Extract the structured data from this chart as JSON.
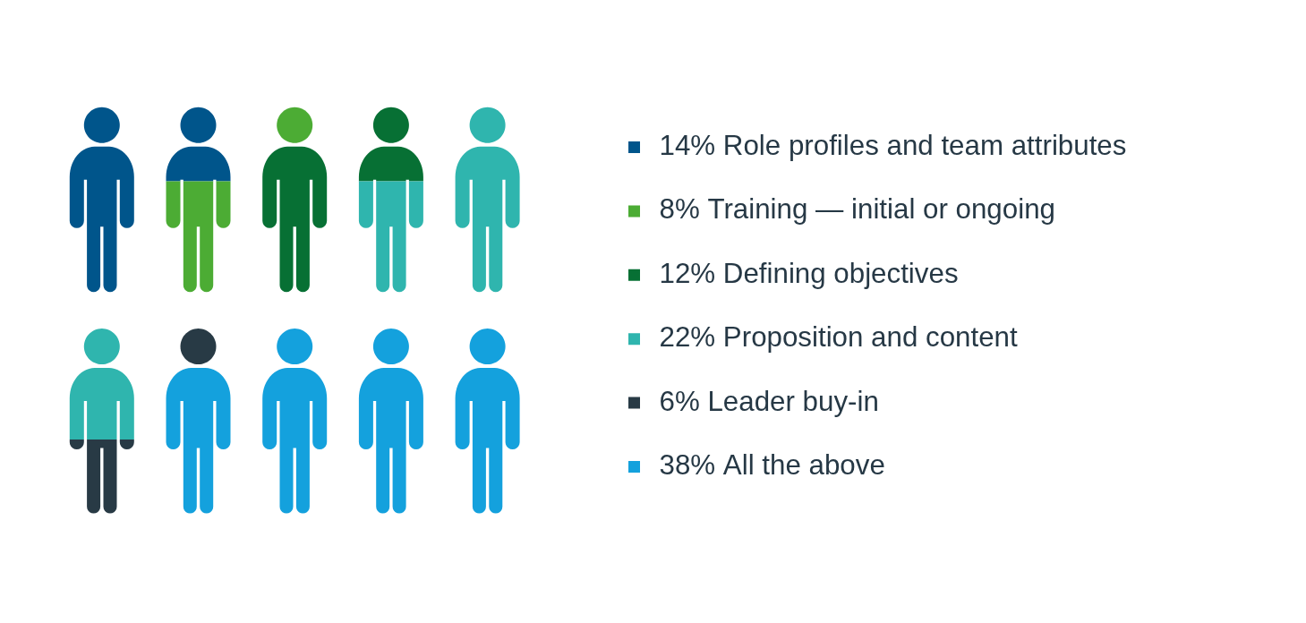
{
  "chart_data": {
    "type": "other",
    "categories": [
      "Role profiles and team attributes",
      "Training — initial or ongoing",
      "Defining objectives",
      "Proposition and content",
      "Leader buy-in",
      "All the above"
    ],
    "values": [
      14,
      8,
      12,
      22,
      6,
      38
    ],
    "value_labels": [
      "14%",
      "8%",
      "12%",
      "22%",
      "6%",
      "38%"
    ],
    "colors": [
      "#00558b",
      "#4cac34",
      "#077034",
      "#2fb5ae",
      "#283a45",
      "#14a1dd"
    ]
  }
}
